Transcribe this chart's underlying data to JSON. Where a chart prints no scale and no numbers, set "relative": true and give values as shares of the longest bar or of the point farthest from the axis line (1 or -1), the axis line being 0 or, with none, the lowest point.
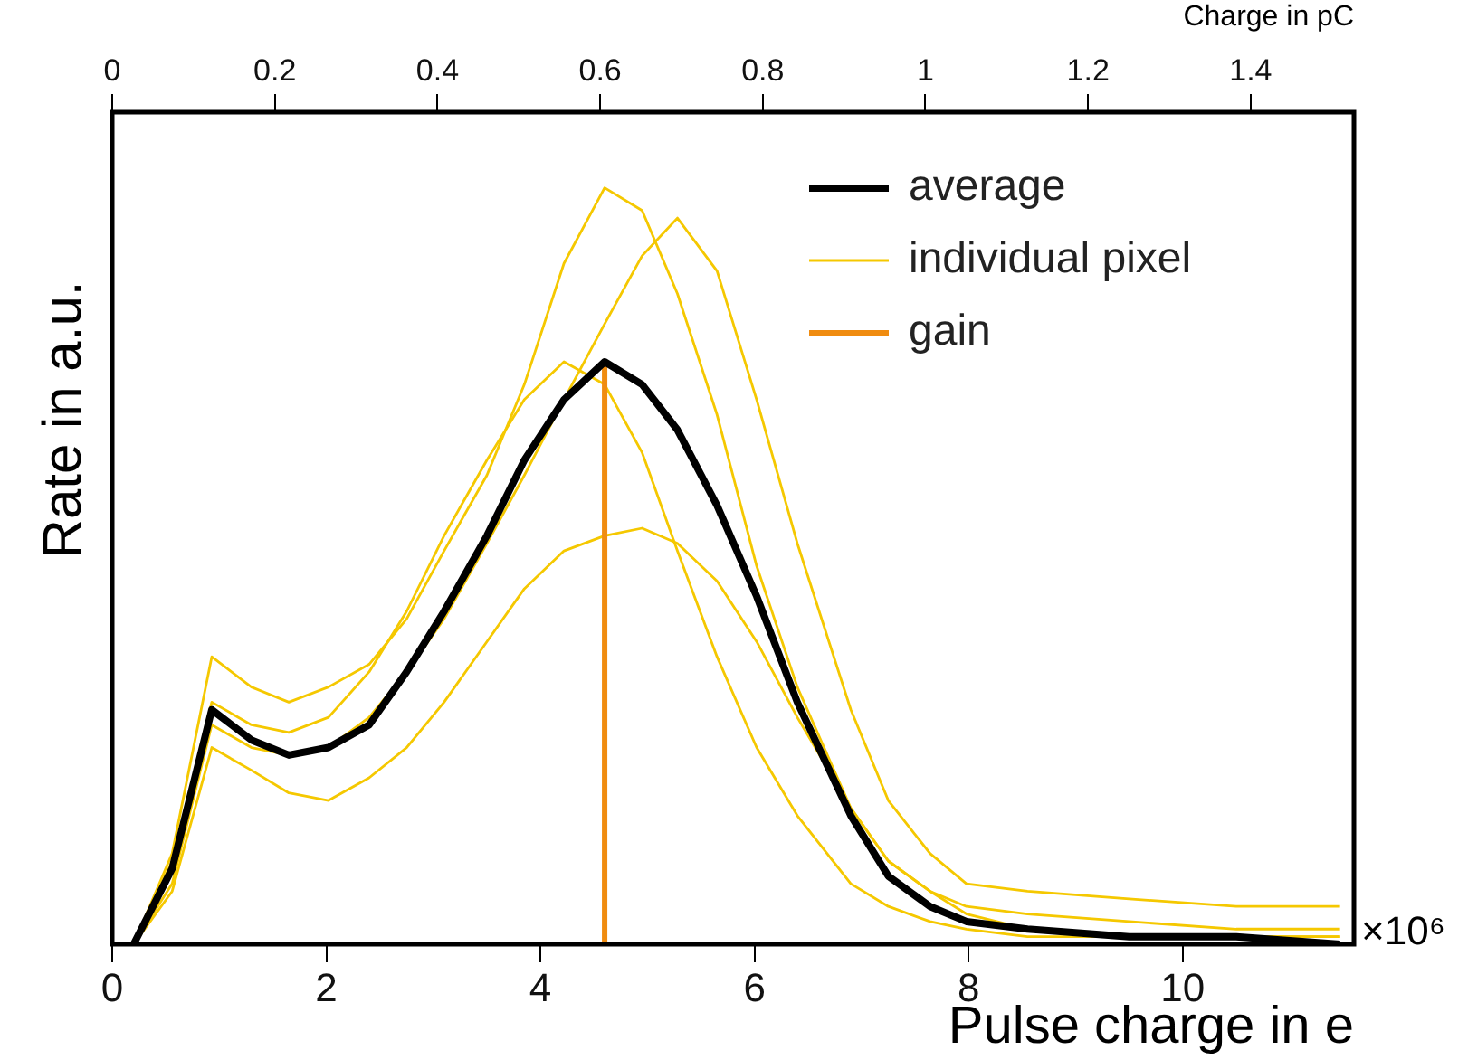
{
  "chart_data": {
    "type": "line",
    "relative": true,
    "xlabel": "Pulse charge in e",
    "ylabel": "Rate in a.u.",
    "x2label": "Charge in pC",
    "annotations": [
      "×10⁶"
    ],
    "x": [
      0.2,
      0.56,
      0.93,
      1.3,
      1.65,
      2.02,
      2.4,
      2.75,
      3.1,
      3.5,
      3.85,
      4.22,
      4.6,
      4.95,
      5.28,
      5.65,
      6.02,
      6.4,
      6.9,
      7.25,
      7.64,
      7.98,
      8.55,
      9.5,
      10.5,
      11.47
    ],
    "xlim": [
      0,
      11.6
    ],
    "xticks": [
      0,
      2,
      4,
      6,
      8,
      10
    ],
    "x2lim": [
      0,
      1.527
    ],
    "x2ticks": [
      0,
      0.2,
      0.4,
      0.6,
      0.8,
      1,
      1.2,
      1.4
    ],
    "legend": "top right",
    "marker": "none",
    "line_style": "solid",
    "grid": false,
    "series": [
      {
        "name": "average",
        "color": "#000000",
        "values": [
          0,
          0.1,
          0.31,
          0.27,
          0.25,
          0.26,
          0.29,
          0.36,
          0.44,
          0.54,
          0.64,
          0.72,
          0.77,
          0.74,
          0.68,
          0.58,
          0.46,
          0.32,
          0.17,
          0.09,
          0.05,
          0.03,
          0.02,
          0.01,
          0.01,
          0
        ]
      },
      {
        "name": "individual pixel",
        "color": "#f5c800",
        "values": [
          0,
          0.12,
          0.38,
          0.34,
          0.32,
          0.34,
          0.37,
          0.43,
          0.52,
          0.62,
          0.74,
          0.9,
          1,
          0.97,
          0.86,
          0.7,
          0.5,
          0.34,
          0.18,
          0.11,
          0.07,
          0.05,
          0.04,
          0.03,
          0.02,
          0.02
        ]
      },
      {
        "color": "#f5c800",
        "values": [
          0,
          0.08,
          0.29,
          0.26,
          0.25,
          0.26,
          0.3,
          0.36,
          0.43,
          0.53,
          0.62,
          0.72,
          0.82,
          0.91,
          0.96,
          0.89,
          0.72,
          0.53,
          0.31,
          0.19,
          0.12,
          0.08,
          0.07,
          0.06,
          0.05,
          0.05
        ]
      },
      {
        "color": "#f5c800",
        "values": [
          0,
          0.07,
          0.26,
          0.23,
          0.2,
          0.19,
          0.22,
          0.26,
          0.32,
          0.4,
          0.47,
          0.52,
          0.54,
          0.55,
          0.53,
          0.48,
          0.4,
          0.3,
          0.18,
          0.11,
          0.07,
          0.04,
          0.02,
          0.01,
          0.01,
          0.01
        ]
      },
      {
        "color": "#f5c800",
        "values": [
          0,
          0.11,
          0.32,
          0.29,
          0.28,
          0.3,
          0.36,
          0.44,
          0.54,
          0.64,
          0.72,
          0.77,
          0.74,
          0.65,
          0.52,
          0.38,
          0.26,
          0.17,
          0.08,
          0.05,
          0.03,
          0.02,
          0.01,
          0.01,
          0.01,
          0.01
        ]
      },
      {
        "name": "gain",
        "color": "#f08c10",
        "x": [
          4.6,
          4.6
        ],
        "values": [
          0,
          0.77
        ]
      }
    ]
  }
}
